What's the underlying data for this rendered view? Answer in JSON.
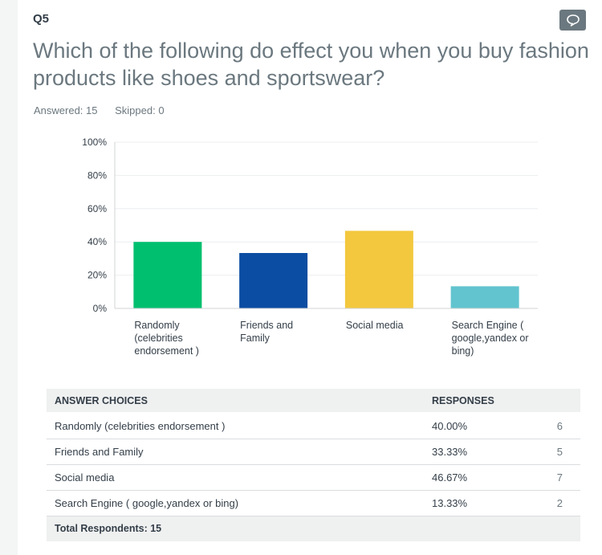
{
  "question": {
    "number": "Q5",
    "title": "Which of the following do effect you when you buy fashion products like shoes and sportswear?",
    "answered": "Answered: 15",
    "skipped": "Skipped: 0",
    "comment_icon": "speech-bubble-icon"
  },
  "chart_data": {
    "type": "bar",
    "categories": [
      [
        "Randomly",
        "(celebrities",
        "endorsement )"
      ],
      [
        "Friends and",
        "Family"
      ],
      [
        "Social media"
      ],
      [
        "Search Engine (",
        "google,yandex or",
        "bing)"
      ]
    ],
    "values": [
      40.0,
      33.33,
      46.67,
      13.33
    ],
    "colors": [
      "#00bf6f",
      "#0b4da2",
      "#f3c83e",
      "#62c4cf"
    ],
    "y_ticks": [
      "100%",
      "80%",
      "60%",
      "40%",
      "20%",
      "0%"
    ],
    "ylim": [
      0,
      100
    ],
    "grid": true
  },
  "table": {
    "headers": [
      "ANSWER CHOICES",
      "RESPONSES",
      ""
    ],
    "rows": [
      {
        "choice": "Randomly (celebrities endorsement )",
        "percent": "40.00%",
        "count": "6"
      },
      {
        "choice": "Friends and Family",
        "percent": "33.33%",
        "count": "5"
      },
      {
        "choice": "Social media",
        "percent": "46.67%",
        "count": "7"
      },
      {
        "choice": "Search Engine ( google,yandex or bing)",
        "percent": "13.33%",
        "count": "2"
      }
    ],
    "total_label": "Total Respondents: 15"
  }
}
